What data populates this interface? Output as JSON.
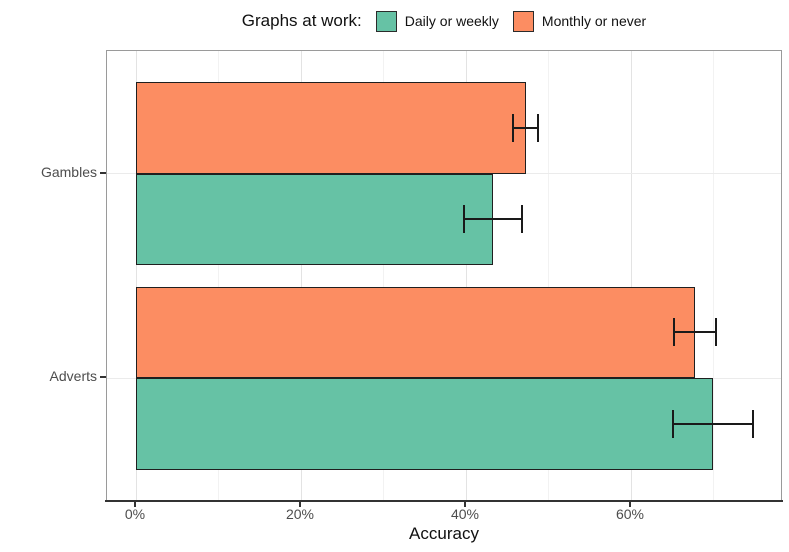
{
  "legend": {
    "title": "Graphs at work:",
    "items": [
      {
        "label": "Daily or weekly",
        "color": "#66C2A5"
      },
      {
        "label": "Monthly or never",
        "color": "#FC8D62"
      }
    ]
  },
  "chart_data": {
    "type": "bar",
    "orientation": "horizontal",
    "title": "",
    "xlabel": "Accuracy",
    "ylabel": "",
    "categories": [
      "Gambles",
      "Adverts"
    ],
    "series": [
      {
        "name": "Daily or weekly",
        "color": "#66C2A5",
        "values": [
          43.3,
          69.9
        ],
        "error_low": [
          39.8,
          65.1
        ],
        "error_high": [
          46.8,
          74.8
        ]
      },
      {
        "name": "Monthly or never",
        "color": "#FC8D62",
        "values": [
          47.3,
          67.8
        ],
        "error_low": [
          45.7,
          65.2
        ],
        "error_high": [
          48.7,
          70.3
        ]
      }
    ],
    "x_tick_values": [
      0,
      20,
      40,
      60
    ],
    "x_tick_labels": [
      "0%",
      "20%",
      "40%",
      "60%"
    ],
    "xlim": [
      -3.5,
      78.4
    ],
    "grid": "vertical major every 20%, minor every 10%",
    "legend_position": "top",
    "bar_outline_color": "#000000",
    "error_bar_color": "#1a1a1a",
    "panel_border_color": "#9a9a9a"
  }
}
